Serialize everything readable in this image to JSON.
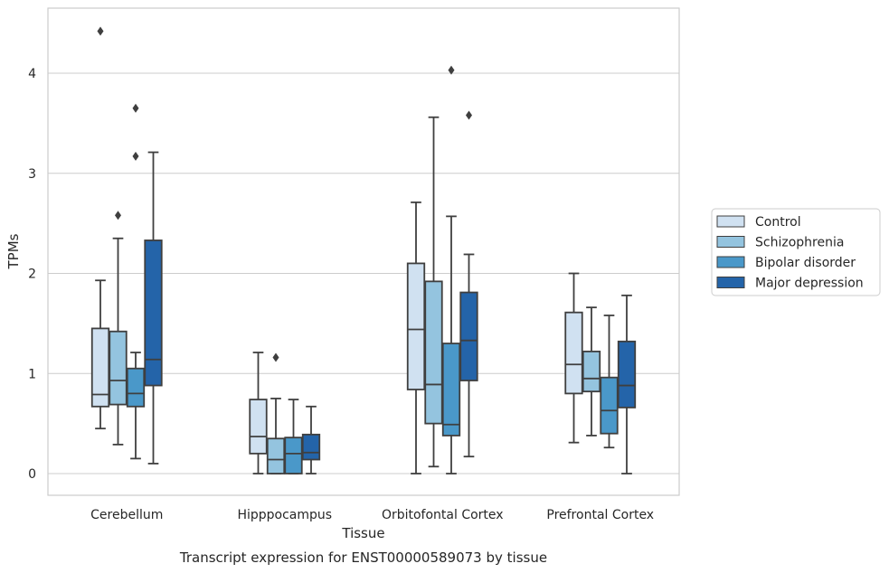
{
  "caption": "Transcript expression for ENST00000589073 by tissue",
  "chart_data": {
    "type": "boxplot",
    "xlabel": "Tissue",
    "ylabel": "TPMs",
    "ylim": [
      -0.2,
      4.67
    ],
    "yticks": [
      0,
      1,
      2,
      3,
      4
    ],
    "grid": "horizontal",
    "legend_position": "right",
    "categories": [
      "Cerebellum",
      "Hipppocampus",
      "Orbitofontal Cortex",
      "Prefrontal Cortex"
    ],
    "series": [
      {
        "name": "Control",
        "color": "#d0e1f1",
        "boxes": [
          {
            "whisker_low": 0.45,
            "q1": 0.67,
            "median": 0.79,
            "q3": 1.45,
            "whisker_high": 1.93,
            "outliers": [
              4.42
            ]
          },
          {
            "whisker_low": 0.0,
            "q1": 0.2,
            "median": 0.37,
            "q3": 0.74,
            "whisker_high": 1.21,
            "outliers": []
          },
          {
            "whisker_low": 0.0,
            "q1": 0.84,
            "median": 1.44,
            "q3": 2.1,
            "whisker_high": 2.71,
            "outliers": []
          },
          {
            "whisker_low": 0.31,
            "q1": 0.8,
            "median": 1.09,
            "q3": 1.61,
            "whisker_high": 2.0,
            "outliers": []
          }
        ]
      },
      {
        "name": "Schizophrenia",
        "color": "#94c4df",
        "boxes": [
          {
            "whisker_low": 0.29,
            "q1": 0.69,
            "median": 0.93,
            "q3": 1.42,
            "whisker_high": 2.35,
            "outliers": [
              2.58
            ]
          },
          {
            "whisker_low": 0.0,
            "q1": 0.0,
            "median": 0.14,
            "q3": 0.35,
            "whisker_high": 0.75,
            "outliers": [
              1.16
            ]
          },
          {
            "whisker_low": 0.07,
            "q1": 0.5,
            "median": 0.89,
            "q3": 1.92,
            "whisker_high": 3.56,
            "outliers": []
          },
          {
            "whisker_low": 0.38,
            "q1": 0.82,
            "median": 0.95,
            "q3": 1.22,
            "whisker_high": 1.66,
            "outliers": []
          }
        ]
      },
      {
        "name": "Bipolar disorder",
        "color": "#4a98c9",
        "boxes": [
          {
            "whisker_low": 0.15,
            "q1": 0.67,
            "median": 0.8,
            "q3": 1.05,
            "whisker_high": 1.21,
            "outliers": [
              3.17,
              3.65
            ]
          },
          {
            "whisker_low": 0.0,
            "q1": 0.0,
            "median": 0.2,
            "q3": 0.36,
            "whisker_high": 0.74,
            "outliers": []
          },
          {
            "whisker_low": 0.0,
            "q1": 0.38,
            "median": 0.49,
            "q3": 1.3,
            "whisker_high": 2.57,
            "outliers": [
              4.03
            ]
          },
          {
            "whisker_low": 0.26,
            "q1": 0.4,
            "median": 0.63,
            "q3": 0.96,
            "whisker_high": 1.58,
            "outliers": []
          }
        ]
      },
      {
        "name": "Major depression",
        "color": "#2464a9",
        "boxes": [
          {
            "whisker_low": 0.1,
            "q1": 0.88,
            "median": 1.14,
            "q3": 2.33,
            "whisker_high": 3.21,
            "outliers": []
          },
          {
            "whisker_low": 0.0,
            "q1": 0.14,
            "median": 0.21,
            "q3": 0.39,
            "whisker_high": 0.67,
            "outliers": []
          },
          {
            "whisker_low": 0.17,
            "q1": 0.93,
            "median": 1.33,
            "q3": 1.81,
            "whisker_high": 2.19,
            "outliers": [
              3.58
            ]
          },
          {
            "whisker_low": 0.0,
            "q1": 0.66,
            "median": 0.88,
            "q3": 1.32,
            "whisker_high": 1.78,
            "outliers": []
          }
        ]
      }
    ]
  }
}
